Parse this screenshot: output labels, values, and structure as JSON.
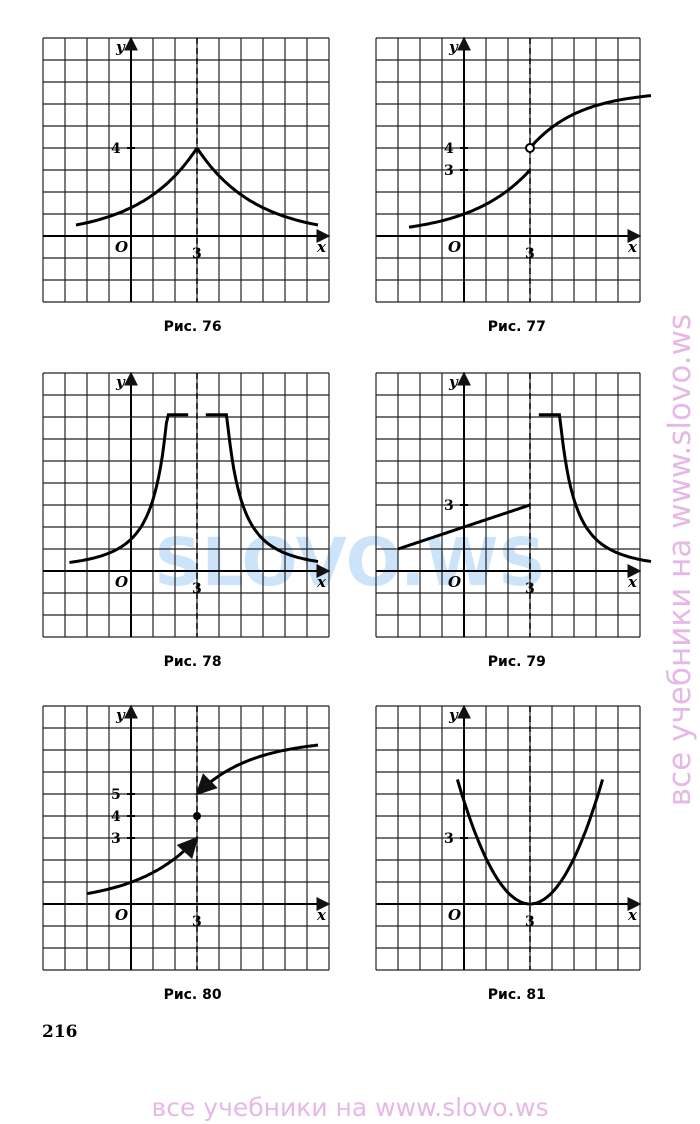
{
  "figures": [
    {
      "caption": "Рис. 76",
      "axis_x": "x",
      "axis_y": "y",
      "origin": "O",
      "x_ticks": [
        "3"
      ],
      "y_ticks": [
        "4"
      ]
    },
    {
      "caption": "Рис. 77",
      "axis_x": "x",
      "axis_y": "y",
      "origin": "O",
      "x_ticks": [
        "3"
      ],
      "y_ticks": [
        "4",
        "3"
      ]
    },
    {
      "caption": "Рис. 78",
      "axis_x": "x",
      "axis_y": "y",
      "origin": "O",
      "x_ticks": [
        "3"
      ],
      "y_ticks": []
    },
    {
      "caption": "Рис. 79",
      "axis_x": "x",
      "axis_y": "y",
      "origin": "O",
      "x_ticks": [
        "3"
      ],
      "y_ticks": [
        "3"
      ]
    },
    {
      "caption": "Рис. 80",
      "axis_x": "x",
      "axis_y": "y",
      "origin": "O",
      "x_ticks": [
        "3"
      ],
      "y_ticks": [
        "5",
        "4",
        "3"
      ]
    },
    {
      "caption": "Рис. 81",
      "axis_x": "x",
      "axis_y": "y",
      "origin": "O",
      "x_ticks": [
        "3"
      ],
      "y_ticks": [
        "3"
      ]
    }
  ],
  "page_number": "216",
  "watermark_center": "SLOVO.WS",
  "watermark_bottom": "все учебники на www.slovo.ws",
  "watermark_side": "все учебники на www.slovo.ws"
}
